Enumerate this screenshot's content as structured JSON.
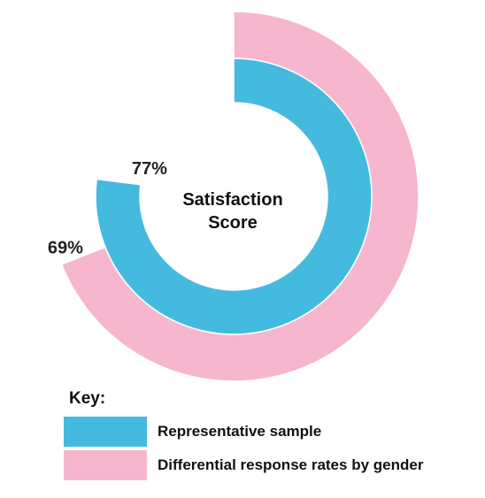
{
  "chart_data": {
    "type": "radial-bar",
    "title": "",
    "center_label": [
      "Satisfaction",
      "Score"
    ],
    "unit": "%",
    "max": 100,
    "series": [
      {
        "name": "Representative sample",
        "value": 77,
        "label": "77%",
        "color": "#45BADF",
        "ring": "inner"
      },
      {
        "name": "Differential response rates by gender",
        "value": 69,
        "label": "69%",
        "color": "#F6B7CE",
        "ring": "outer"
      }
    ],
    "legend": {
      "title": "Key:",
      "position": "bottom-left"
    }
  }
}
